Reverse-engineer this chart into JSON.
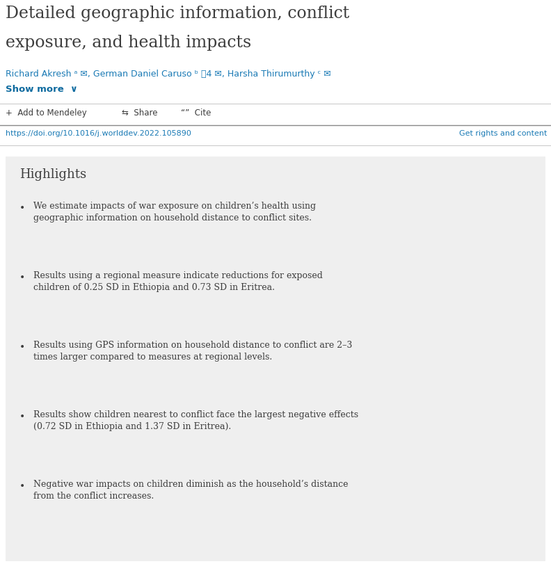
{
  "title_line1": "Detailed geographic information, conflict",
  "title_line2": "exposure, and health impacts",
  "title_color": "#3d3d3d",
  "title_fontsize": 17,
  "authors_text": "Richard Akresh ᵃ ✉, German Daniel Caruso ᵇ ὆4 ✉, Harsha Thirumurthy ᶜ ✉",
  "authors_color": "#1a7ab5",
  "authors_fontsize": 9,
  "show_more_color": "#0d6a9f",
  "show_more_fontsize": 9.5,
  "action_color": "#3d3d3d",
  "action_fontsize": 8.5,
  "doi_text": "https://doi.org/10.1016/j.worlddev.2022.105890",
  "doi_color": "#1a7ab5",
  "doi_fontsize": 8,
  "rights_text": "Get rights and content",
  "rights_color": "#1a7ab5",
  "rights_fontsize": 8,
  "highlights_title": "Highlights",
  "highlights_title_color": "#3d3d3d",
  "highlights_title_fontsize": 13,
  "highlights_bg": "#efefef",
  "bullet_color": "#3d3d3d",
  "bullet_fontsize": 9,
  "bullets": [
    "We estimate impacts of war exposure on children’s health using\ngeographic information on household distance to conflict sites.",
    "Results using a regional measure indicate reductions for exposed\nchildren of 0.25 SD in Ethiopia and 0.73 SD in Eritrea.",
    "Results using GPS information on household distance to conflict are 2–3\ntimes larger compared to measures at regional levels.",
    "Results show children nearest to conflict face the largest negative effects\n(0.72 SD in Ethiopia and 1.37 SD in Eritrea).",
    "Negative war impacts on children diminish as the household’s distance\nfrom the conflict increases."
  ],
  "bg_color": "#ffffff",
  "sep_color": "#cccccc",
  "sep_color_dark": "#888888",
  "fig_width": 7.92,
  "fig_height": 8.12,
  "dpi": 100
}
